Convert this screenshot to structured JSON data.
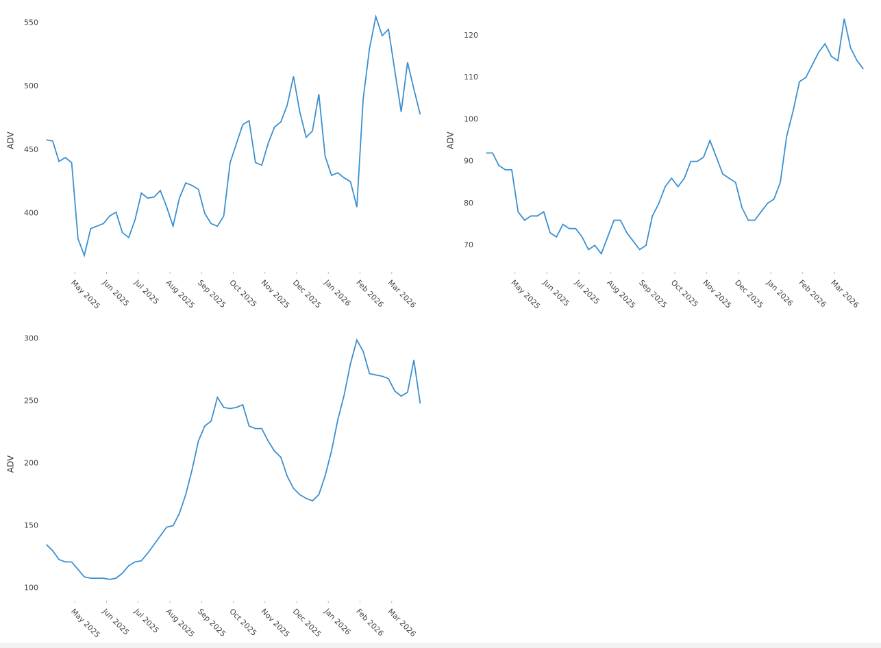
{
  "chart_data": [
    {
      "type": "line",
      "y_label": "ADV",
      "color": "#3a8fd0",
      "x": [
        "2025-04",
        "2025-05",
        "2025-06",
        "2025-07",
        "2025-08",
        "2025-09",
        "2025-10",
        "2025-11",
        "2025-12",
        "2026-01",
        "2026-02",
        "2026-03"
      ],
      "values": [
        [
          458,
          457,
          441,
          444,
          440
        ],
        [
          380,
          367,
          388,
          390,
          392
        ],
        [
          398,
          401,
          385,
          381,
          395
        ],
        [
          416,
          412,
          413,
          418,
          405
        ],
        [
          390,
          412,
          424,
          422,
          419
        ],
        [
          400,
          392,
          390,
          398,
          440
        ],
        [
          455,
          470,
          473,
          440,
          438
        ],
        [
          455,
          468,
          472,
          485,
          508
        ],
        [
          480,
          460,
          465,
          494,
          445
        ],
        [
          430,
          432,
          428,
          425,
          405
        ],
        [
          490,
          530,
          555,
          540,
          545
        ],
        [
          512,
          480,
          519,
          498,
          478
        ]
      ],
      "xlim": [
        "2025-04",
        "2026-04"
      ],
      "xticks": [
        {
          "value": "2025-05",
          "label": "May 2025"
        },
        {
          "value": "2025-06",
          "label": "Jun 2025"
        },
        {
          "value": "2025-07",
          "label": "Jul 2025"
        },
        {
          "value": "2025-08",
          "label": "Aug 2025"
        },
        {
          "value": "2025-09",
          "label": "Sep 2025"
        },
        {
          "value": "2025-10",
          "label": "Oct 2025"
        },
        {
          "value": "2025-11",
          "label": "Nov 2025"
        },
        {
          "value": "2025-12",
          "label": "Dec 2025"
        },
        {
          "value": "2026-01",
          "label": "Jan 2026"
        },
        {
          "value": "2026-02",
          "label": "Feb 2026"
        },
        {
          "value": "2026-03",
          "label": "Mar 2026"
        }
      ],
      "ylim": [
        355,
        560
      ],
      "yticks": [
        400,
        450,
        500,
        550
      ]
    },
    {
      "type": "line",
      "y_label": "ADV",
      "color": "#3a8fd0",
      "x": [
        "2025-04",
        "2025-05",
        "2025-06",
        "2025-07",
        "2025-08",
        "2025-09",
        "2025-10",
        "2025-11",
        "2025-12",
        "2026-01",
        "2026-02",
        "2026-03"
      ],
      "values": [
        [
          92,
          92,
          89,
          88,
          88
        ],
        [
          78,
          76,
          77,
          77,
          78
        ],
        [
          73,
          72,
          75,
          74,
          74
        ],
        [
          72,
          69,
          70,
          68,
          72
        ],
        [
          76,
          76,
          73,
          71,
          69
        ],
        [
          70,
          77,
          80,
          84,
          86
        ],
        [
          84,
          86,
          90,
          90,
          91
        ],
        [
          95,
          91,
          87,
          86,
          85
        ],
        [
          79,
          76,
          76,
          78,
          80
        ],
        [
          81,
          85,
          96,
          102,
          109
        ],
        [
          110,
          113,
          116,
          118,
          115
        ],
        [
          114,
          124,
          117,
          114,
          112
        ]
      ],
      "xlim": [
        "2025-04",
        "2026-04"
      ],
      "xticks": [
        {
          "value": "2025-05",
          "label": "May 2025"
        },
        {
          "value": "2025-06",
          "label": "Jun 2025"
        },
        {
          "value": "2025-07",
          "label": "Jul 2025"
        },
        {
          "value": "2025-08",
          "label": "Aug 2025"
        },
        {
          "value": "2025-09",
          "label": "Sep 2025"
        },
        {
          "value": "2025-10",
          "label": "Oct 2025"
        },
        {
          "value": "2025-11",
          "label": "Nov 2025"
        },
        {
          "value": "2025-12",
          "label": "Dec 2025"
        },
        {
          "value": "2026-01",
          "label": "Jan 2026"
        },
        {
          "value": "2026-02",
          "label": "Feb 2026"
        },
        {
          "value": "2026-03",
          "label": "Mar 2026"
        }
      ],
      "ylim": [
        64,
        126
      ],
      "yticks": [
        70,
        80,
        90,
        100,
        110,
        120
      ]
    },
    {
      "type": "line",
      "y_label": "ADV",
      "color": "#3a8fd0",
      "x": [
        "2025-04",
        "2025-05",
        "2025-06",
        "2025-07",
        "2025-08",
        "2025-09",
        "2025-10",
        "2025-11",
        "2025-12",
        "2026-01",
        "2026-02",
        "2026-03"
      ],
      "values": [
        [
          135,
          130,
          123,
          121,
          121
        ],
        [
          115,
          109,
          108,
          108,
          108
        ],
        [
          107,
          108,
          112,
          118,
          121
        ],
        [
          122,
          128,
          135,
          142,
          149
        ],
        [
          150,
          160,
          175,
          195,
          218
        ],
        [
          230,
          234,
          253,
          245,
          244
        ],
        [
          245,
          247,
          230,
          228,
          228
        ],
        [
          218,
          210,
          205,
          190,
          180
        ],
        [
          175,
          172,
          170,
          175,
          190
        ],
        [
          210,
          235,
          255,
          280,
          299
        ],
        [
          290,
          272,
          271,
          270,
          268
        ],
        [
          258,
          254,
          257,
          283,
          248
        ]
      ],
      "xlim": [
        "2025-04",
        "2026-04"
      ],
      "xticks": [
        {
          "value": "2025-05",
          "label": "May 2025"
        },
        {
          "value": "2025-06",
          "label": "Jun 2025"
        },
        {
          "value": "2025-07",
          "label": "Jul 2025"
        },
        {
          "value": "2025-08",
          "label": "Aug 2025"
        },
        {
          "value": "2025-09",
          "label": "Sep 2025"
        },
        {
          "value": "2025-10",
          "label": "Oct 2025"
        },
        {
          "value": "2025-11",
          "label": "Nov 2025"
        },
        {
          "value": "2025-12",
          "label": "Dec 2025"
        },
        {
          "value": "2026-01",
          "label": "Jan 2026"
        },
        {
          "value": "2026-02",
          "label": "Feb 2026"
        },
        {
          "value": "2026-03",
          "label": "Mar 2026"
        }
      ],
      "ylim": [
        91,
        308
      ],
      "yticks": [
        100,
        150,
        200,
        250,
        300
      ]
    }
  ]
}
